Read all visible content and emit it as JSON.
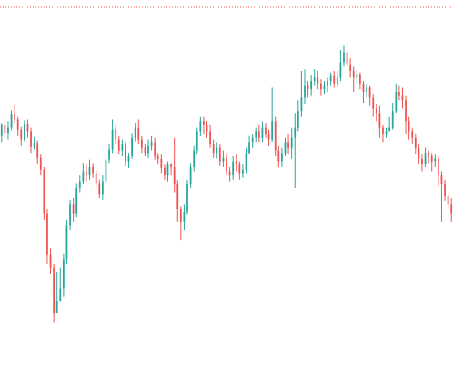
{
  "chart_data": {
    "type": "candlestick",
    "title": "",
    "xlabel": "",
    "ylabel": "",
    "grid": false,
    "legend": "none",
    "ylim": [
      0,
      406
    ],
    "colors": {
      "up": "#26a69a",
      "down": "#ef5350",
      "price_line": "#ef5350"
    },
    "price_line_level": 406,
    "candles": [
      [
        252,
        265,
        268,
        245
      ],
      [
        265,
        256,
        272,
        250
      ],
      [
        256,
        262,
        270,
        248
      ],
      [
        262,
        278,
        283,
        259
      ],
      [
        278,
        272,
        289,
        268
      ],
      [
        272,
        260,
        275,
        252
      ],
      [
        260,
        248,
        263,
        240
      ],
      [
        248,
        266,
        271,
        246
      ],
      [
        266,
        258,
        272,
        250
      ],
      [
        258,
        239,
        262,
        232
      ],
      [
        239,
        244,
        251,
        236
      ],
      [
        244,
        226,
        247,
        218
      ],
      [
        226,
        212,
        230,
        205
      ],
      [
        212,
        160,
        215,
        152
      ],
      [
        160,
        110,
        165,
        100
      ],
      [
        110,
        95,
        118,
        88
      ],
      [
        95,
        40,
        100,
        30
      ],
      [
        40,
        55,
        90,
        48
      ],
      [
        55,
        70,
        95,
        65
      ],
      [
        70,
        105,
        112,
        60
      ],
      [
        105,
        145,
        152,
        100
      ],
      [
        145,
        170,
        176,
        140
      ],
      [
        170,
        160,
        178,
        150
      ],
      [
        160,
        190,
        196,
        155
      ],
      [
        190,
        198,
        205,
        185
      ],
      [
        198,
        210,
        220,
        195
      ],
      [
        210,
        205,
        218,
        198
      ],
      [
        205,
        215,
        224,
        200
      ],
      [
        215,
        208,
        220,
        202
      ],
      [
        208,
        196,
        212,
        190
      ],
      [
        196,
        182,
        200,
        178
      ],
      [
        182,
        198,
        205,
        176
      ],
      [
        198,
        224,
        230,
        195
      ],
      [
        224,
        236,
        242,
        220
      ],
      [
        236,
        260,
        272,
        232
      ],
      [
        260,
        248,
        265,
        242
      ],
      [
        248,
        235,
        252,
        230
      ],
      [
        235,
        242,
        248,
        228
      ],
      [
        242,
        222,
        246,
        216
      ],
      [
        222,
        228,
        232,
        214
      ],
      [
        228,
        250,
        256,
        225
      ],
      [
        250,
        262,
        268,
        246
      ],
      [
        262,
        248,
        272,
        242
      ],
      [
        248,
        238,
        252,
        232
      ],
      [
        238,
        232,
        242,
        228
      ],
      [
        232,
        240,
        248,
        226
      ],
      [
        240,
        245,
        252,
        235
      ],
      [
        245,
        228,
        250,
        224
      ],
      [
        228,
        225,
        232,
        218
      ],
      [
        225,
        214,
        230,
        208
      ],
      [
        214,
        205,
        218,
        200
      ],
      [
        205,
        218,
        222,
        198
      ],
      [
        218,
        215,
        220,
        205
      ],
      [
        215,
        195,
        250,
        185
      ],
      [
        195,
        165,
        200,
        150
      ],
      [
        165,
        150,
        168,
        128
      ],
      [
        150,
        162,
        170,
        140
      ],
      [
        162,
        195,
        200,
        158
      ],
      [
        195,
        215,
        220,
        190
      ],
      [
        215,
        235,
        240,
        210
      ],
      [
        235,
        258,
        262,
        230
      ],
      [
        258,
        270,
        275,
        252
      ],
      [
        270,
        265,
        275,
        255
      ],
      [
        265,
        258,
        270,
        250
      ],
      [
        258,
        242,
        265,
        238
      ],
      [
        242,
        232,
        248,
        226
      ],
      [
        232,
        238,
        245,
        225
      ],
      [
        238,
        222,
        242,
        216
      ],
      [
        222,
        226,
        235,
        215
      ],
      [
        226,
        210,
        232,
        205
      ],
      [
        210,
        205,
        215,
        198
      ],
      [
        205,
        222,
        228,
        200
      ],
      [
        222,
        218,
        230,
        210
      ],
      [
        218,
        208,
        222,
        200
      ],
      [
        208,
        212,
        218,
        202
      ],
      [
        212,
        232,
        238,
        208
      ],
      [
        232,
        245,
        252,
        230
      ],
      [
        245,
        250,
        255,
        238
      ],
      [
        250,
        258,
        262,
        245
      ],
      [
        258,
        250,
        265,
        245
      ],
      [
        250,
        262,
        270,
        245
      ],
      [
        262,
        255,
        268,
        250
      ],
      [
        255,
        248,
        260,
        240
      ],
      [
        248,
        270,
        310,
        245
      ],
      [
        270,
        235,
        275,
        228
      ],
      [
        235,
        222,
        240,
        215
      ],
      [
        222,
        232,
        238,
        215
      ],
      [
        232,
        245,
        250,
        228
      ],
      [
        245,
        238,
        255,
        230
      ],
      [
        238,
        250,
        262,
        225
      ],
      [
        250,
        262,
        280,
        190
      ],
      [
        262,
        282,
        295,
        258
      ],
      [
        282,
        298,
        330,
        275
      ],
      [
        298,
        312,
        332,
        290
      ],
      [
        312,
        308,
        318,
        298
      ],
      [
        308,
        318,
        325,
        300
      ],
      [
        318,
        322,
        332,
        312
      ],
      [
        322,
        315,
        330,
        308
      ],
      [
        315,
        308,
        320,
        300
      ],
      [
        308,
        312,
        318,
        302
      ],
      [
        312,
        318,
        322,
        305
      ],
      [
        318,
        324,
        328,
        312
      ],
      [
        324,
        315,
        330,
        310
      ],
      [
        315,
        322,
        330,
        310
      ],
      [
        322,
        340,
        355,
        318
      ],
      [
        340,
        352,
        360,
        335
      ],
      [
        352,
        338,
        362,
        330
      ],
      [
        338,
        330,
        345,
        322
      ],
      [
        330,
        322,
        335,
        305
      ],
      [
        322,
        326,
        332,
        315
      ],
      [
        326,
        315,
        328,
        308
      ],
      [
        315,
        305,
        318,
        292
      ],
      [
        305,
        310,
        315,
        298
      ],
      [
        310,
        298,
        312,
        288
      ],
      [
        298,
        285,
        302,
        275
      ],
      [
        285,
        280,
        290,
        270
      ],
      [
        280,
        262,
        288,
        250
      ],
      [
        262,
        255,
        265,
        245
      ],
      [
        255,
        258,
        262,
        250
      ],
      [
        258,
        262,
        275,
        258
      ],
      [
        262,
        282,
        292,
        260
      ],
      [
        282,
        305,
        315,
        280
      ],
      [
        305,
        300,
        312,
        295
      ],
      [
        300,
        295,
        310,
        285
      ],
      [
        295,
        270,
        300,
        255
      ],
      [
        270,
        258,
        275,
        248
      ],
      [
        258,
        250,
        262,
        242
      ],
      [
        250,
        238,
        255,
        230
      ],
      [
        238,
        225,
        242,
        218
      ],
      [
        225,
        218,
        230,
        210
      ],
      [
        218,
        232,
        238,
        215
      ],
      [
        232,
        228,
        235,
        220
      ],
      [
        228,
        222,
        232,
        210
      ],
      [
        222,
        225,
        230,
        215
      ],
      [
        225,
        205,
        228,
        192
      ],
      [
        205,
        195,
        210,
        150
      ],
      [
        195,
        180,
        200,
        175
      ],
      [
        180,
        170,
        185,
        165
      ],
      [
        170,
        160,
        178,
        150
      ]
    ]
  }
}
